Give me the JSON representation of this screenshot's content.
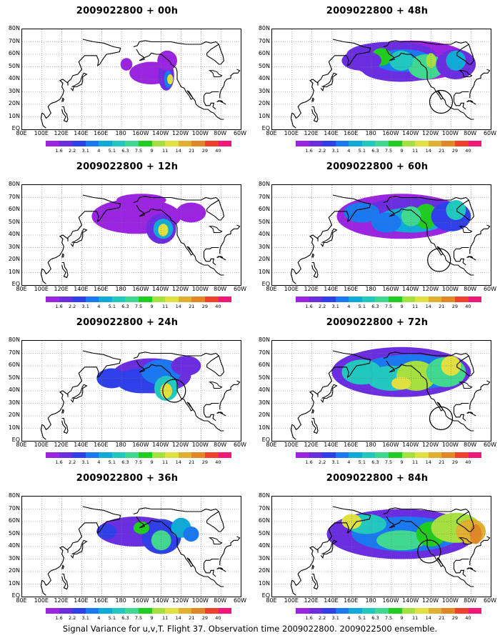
{
  "panels": [
    {
      "title": "2009022800 + 00h",
      "lead_hours": 0,
      "circle": null
    },
    {
      "title": "2009022800 + 48h",
      "lead_hours": 48,
      "circle": {
        "lon": -110,
        "lat": 22
      }
    },
    {
      "title": "2009022800 + 12h",
      "lead_hours": 12,
      "circle": null
    },
    {
      "title": "2009022800 + 60h",
      "lead_hours": 60,
      "circle": {
        "lon": -112,
        "lat": 20
      }
    },
    {
      "title": "2009022800 + 24h",
      "lead_hours": 24,
      "circle": {
        "lon": -127,
        "lat": 40
      }
    },
    {
      "title": "2009022800 + 72h",
      "lead_hours": 72,
      "circle": {
        "lon": -110,
        "lat": 18
      }
    },
    {
      "title": "2009022800 + 36h",
      "lead_hours": 36,
      "circle": null
    },
    {
      "title": "2009022800 + 84h",
      "lead_hours": 84,
      "circle": {
        "lon": -122,
        "lat": 36
      }
    }
  ],
  "map": {
    "lon_labels": [
      "80E",
      "100E",
      "120E",
      "140E",
      "160E",
      "180",
      "160W",
      "140W",
      "120W",
      "100W",
      "80W",
      "60W"
    ],
    "lat_labels": [
      "EQ",
      "10N",
      "20N",
      "30N",
      "40N",
      "50N",
      "60N",
      "70N",
      "80N"
    ]
  },
  "colorbar": {
    "labels": [
      "1.6",
      "2.2",
      "3.1",
      "4",
      "5.1",
      "6.3",
      "7.5",
      "9",
      "11",
      "14",
      "21",
      "29",
      "40"
    ],
    "colors": [
      "#9a24e0",
      "#6a2ee0",
      "#3040e8",
      "#1a78f0",
      "#10aad8",
      "#20c8c0",
      "#40d890",
      "#20cc20",
      "#a6e040",
      "#e0e040",
      "#e0b030",
      "#e08828",
      "#f04030",
      "#f01878"
    ]
  },
  "footer": "Signal Variance for u,v,T. Flight 37. Observation time 2009022800. 2009022500 ensemble."
}
